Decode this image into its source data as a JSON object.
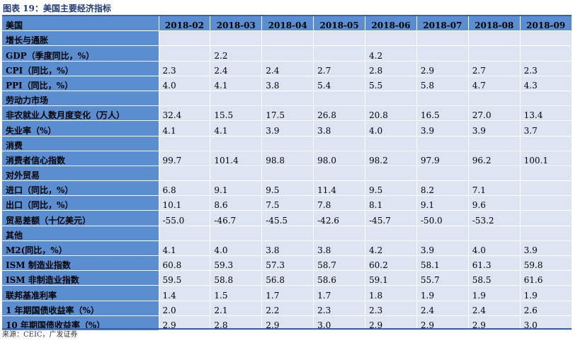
{
  "caption": "图表 19：美国主要经济指标",
  "header": {
    "first": "美国",
    "months": [
      "2018-02",
      "2018-03",
      "2018-04",
      "2018-05",
      "2018-06",
      "2018-07",
      "2018-08",
      "2018-09"
    ]
  },
  "rows": [
    {
      "label": "增长与通胀",
      "section": true,
      "values": [
        "",
        "",
        "",
        "",
        "",
        "",
        "",
        ""
      ]
    },
    {
      "label": "GDP（季度同比，%）",
      "values": [
        "",
        "2.2",
        "",
        "",
        "4.2",
        "",
        "",
        ""
      ]
    },
    {
      "label": "CPI（同比，%）",
      "values": [
        "2.3",
        "2.4",
        "2.4",
        "2.7",
        "2.8",
        "2.9",
        "2.7",
        "2.3"
      ]
    },
    {
      "label": "PPI（同比，%）",
      "values": [
        "4.0",
        "4.1",
        "3.8",
        "5.4",
        "5.5",
        "5.8",
        "4.7",
        "4.3"
      ]
    },
    {
      "label": "劳动力市场",
      "section": true,
      "values": [
        "",
        "",
        "",
        "",
        "",
        "",
        "",
        ""
      ]
    },
    {
      "label": "非农就业人数月度变化（万人）",
      "values": [
        "32.4",
        "15.5",
        "17.5",
        "26.8",
        "20.8",
        "16.5",
        "27.0",
        "13.4"
      ]
    },
    {
      "label": "失业率（%）",
      "values": [
        "4.1",
        "4.1",
        "3.9",
        "3.8",
        "4.0",
        "3.9",
        "3.9",
        "3.7"
      ]
    },
    {
      "label": "消费",
      "section": true,
      "values": [
        "",
        "",
        "",
        "",
        "",
        "",
        "",
        ""
      ]
    },
    {
      "label": "消费者信心指数",
      "values": [
        "99.7",
        "101.4",
        "98.8",
        "98.0",
        "98.2",
        "97.9",
        "96.2",
        "100.1"
      ]
    },
    {
      "label": "对外贸易",
      "section": true,
      "values": [
        "",
        "",
        "",
        "",
        "",
        "",
        "",
        ""
      ]
    },
    {
      "label": "进口（同比，%）",
      "values": [
        "6.8",
        "9.1",
        "9.5",
        "11.4",
        "9.5",
        "8.2",
        "7.1",
        ""
      ]
    },
    {
      "label": "出口（同比，%）",
      "values": [
        "10.1",
        "8.6",
        "7.5",
        "7.8",
        "8.1",
        "9.1",
        "9.6",
        ""
      ]
    },
    {
      "label": "贸易差额（十亿美元）",
      "values": [
        "-55.0",
        "-46.7",
        "-45.5",
        "-42.6",
        "-45.7",
        "-50.0",
        "-53.2",
        ""
      ]
    },
    {
      "label": "其他",
      "section": true,
      "values": [
        "",
        "",
        "",
        "",
        "",
        "",
        "",
        ""
      ]
    },
    {
      "label": "M2(同比，%）",
      "values": [
        "4.1",
        "4.0",
        "3.8",
        "3.8",
        "4.2",
        "3.9",
        "4.0",
        "3.9"
      ]
    },
    {
      "label": "ISM 制造业指数",
      "values": [
        "60.8",
        "59.3",
        "57.3",
        "58.7",
        "60.2",
        "58.1",
        "61.3",
        "59.8"
      ]
    },
    {
      "label": "ISM 非制造业指数",
      "values": [
        "59.5",
        "58.8",
        "56.8",
        "58.6",
        "59.1",
        "55.7",
        "58.5",
        "61.6"
      ]
    },
    {
      "label": "联邦基准利率",
      "values": [
        "1.4",
        "1.5",
        "1.7",
        "1.7",
        "1.8",
        "1.9",
        "1.9",
        "1.9"
      ]
    },
    {
      "label": "1 年期国债收益率（%）",
      "values": [
        "2.0",
        "2.1",
        "2.2",
        "2.3",
        "2.3",
        "2.4",
        "2.4",
        "2.6"
      ]
    },
    {
      "label": "10 年期国债收益率（%）",
      "values": [
        "2.9",
        "2.8",
        "2.9",
        "3.0",
        "2.9",
        "2.9",
        "2.9",
        "3.0"
      ]
    }
  ],
  "source": "来源：CEIC，广发证券"
}
